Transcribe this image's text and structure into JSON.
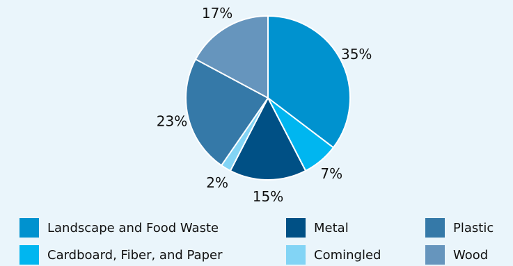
{
  "chart_data": {
    "type": "pie",
    "start_angle_deg": 0,
    "direction": "clockwise",
    "slices": [
      {
        "label": "Landscape and Food Waste",
        "value": 35,
        "value_label": "35%",
        "color": "#0092cf"
      },
      {
        "label": "Cardboard, Fiber, and Paper",
        "value": 7,
        "value_label": "7%",
        "color": "#00b6f0"
      },
      {
        "label": "Metal",
        "value": 15,
        "value_label": "15%",
        "color": "#005085"
      },
      {
        "label": "Comingled",
        "value": 2,
        "value_label": "2%",
        "color": "#82d4f5"
      },
      {
        "label": "Plastic",
        "value": 23,
        "value_label": "23%",
        "color": "#3579a8"
      },
      {
        "label": "Wood",
        "value": 17,
        "value_label": "17%",
        "color": "#6695bd"
      }
    ],
    "legend": {
      "placement": "bottom",
      "columns": [
        [
          "Landscape and Food Waste",
          "Cardboard, Fiber, and Paper"
        ],
        [
          "Metal",
          "Comingled"
        ],
        [
          "Plastic",
          "Wood"
        ]
      ]
    }
  }
}
